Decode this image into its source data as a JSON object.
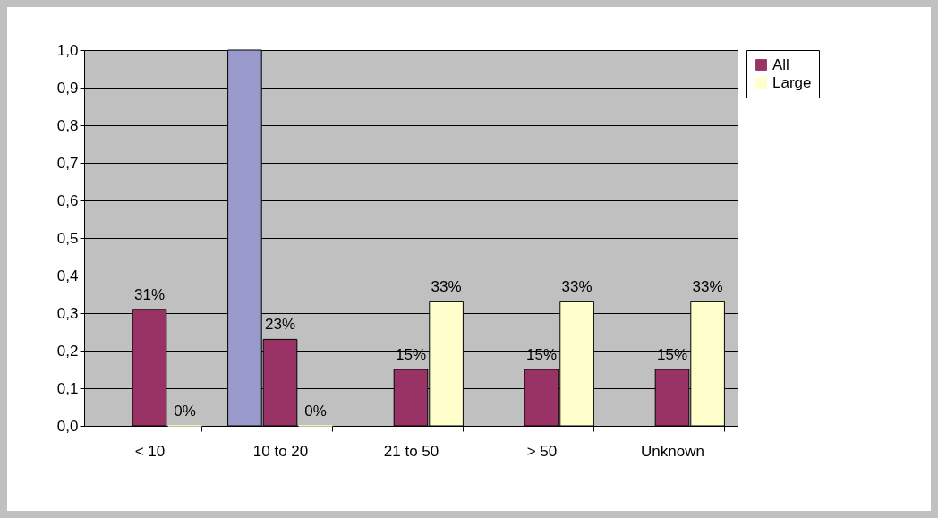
{
  "chart_data": {
    "type": "bar",
    "categories": [
      "< 10",
      "10 to 20",
      "21 to 50",
      "> 50",
      "Unknown"
    ],
    "series": [
      {
        "color": "#9999cc",
        "values": [
          null,
          1.0,
          null,
          null,
          null
        ]
      },
      {
        "name": "All",
        "color": "#993366",
        "values": [
          0.31,
          0.23,
          0.15,
          0.15,
          0.15
        ],
        "value_labels": [
          "31%",
          "23%",
          "15%",
          "15%",
          "15%"
        ]
      },
      {
        "name": "Large",
        "color": "#ffffcc",
        "values": [
          0,
          0,
          0.33,
          0.33,
          0.33
        ],
        "value_labels": [
          "0%",
          "0%",
          "33%",
          "33%",
          "33%"
        ]
      }
    ],
    "ylim": [
      0,
      1
    ],
    "yticks": [
      {
        "value": 0,
        "label": "0,0"
      },
      {
        "value": 0.1,
        "label": "0,1"
      },
      {
        "value": 0.2,
        "label": "0,2"
      },
      {
        "value": 0.3,
        "label": "0,3"
      },
      {
        "value": 0.4,
        "label": "0,4"
      },
      {
        "value": 0.5,
        "label": "0,5"
      },
      {
        "value": 0.6,
        "label": "0,6"
      },
      {
        "value": 0.7,
        "label": "0,7"
      },
      {
        "value": 0.8,
        "label": "0,8"
      },
      {
        "value": 0.9,
        "label": "0,9"
      },
      {
        "value": 1,
        "label": "1,0"
      }
    ],
    "grid": "y",
    "legend": "right"
  }
}
